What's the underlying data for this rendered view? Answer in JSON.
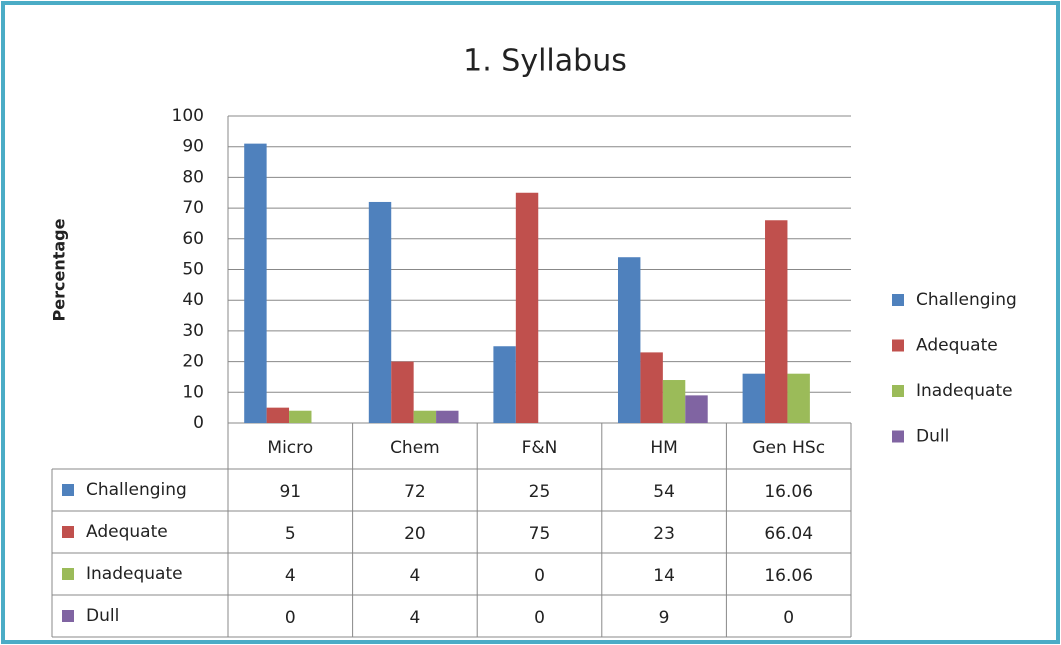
{
  "chart_data": {
    "type": "bar",
    "title": "1. Syllabus",
    "y_label": "Percentage",
    "categories": [
      "Micro",
      "Chem",
      "F&N",
      "HM",
      "Gen HSc"
    ],
    "series": [
      {
        "name": "Challenging",
        "color": "#4f81bd",
        "values": [
          91,
          72,
          25,
          54,
          16.06
        ]
      },
      {
        "name": "Adequate",
        "color": "#c0504d",
        "values": [
          5,
          20,
          75,
          23,
          66.04
        ]
      },
      {
        "name": "Inadequate",
        "color": "#9bbb59",
        "values": [
          4,
          4,
          0,
          14,
          16.06
        ]
      },
      {
        "name": "Dull",
        "color": "#8064a2",
        "values": [
          0,
          4,
          0,
          9,
          0
        ]
      }
    ],
    "ylim": [
      0,
      100
    ],
    "yticks": [
      0,
      10,
      20,
      30,
      40,
      50,
      60,
      70,
      80,
      90,
      100
    ],
    "grid": true,
    "legend": "right",
    "data_table": true
  }
}
